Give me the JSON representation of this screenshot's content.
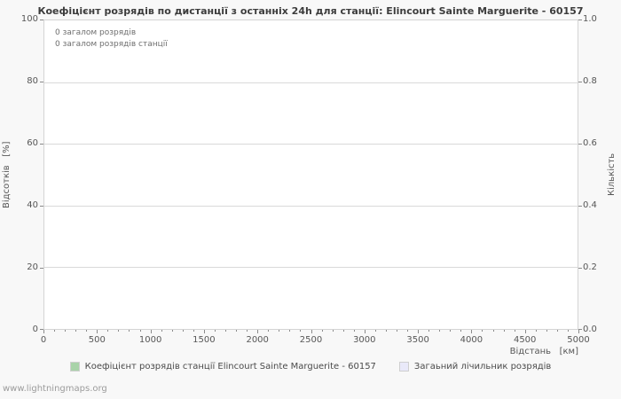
{
  "page": {
    "watermark": "www.lightningmaps.org"
  },
  "chart_data": {
    "type": "line",
    "title": "Коефіцієнт розрядів по дистанції з останніх 24h для станції: Elincourt Sainte Marguerite - 60157",
    "xlabel": "Відстань   [км]",
    "ylabel_left": "Відсотків   [%]",
    "ylabel_right": "Кількість",
    "xlim": [
      0,
      5000
    ],
    "ylim_left": [
      0,
      100
    ],
    "ylim_right": [
      0.0,
      1.0
    ],
    "x_ticks": [
      0,
      500,
      1000,
      1500,
      2000,
      2500,
      3000,
      3500,
      4000,
      4500,
      5000
    ],
    "y_left_ticks": [
      0,
      20,
      40,
      60,
      80,
      100
    ],
    "y_right_ticks": [
      "0.0",
      "0.2",
      "0.4",
      "0.6",
      "0.8",
      "1.0"
    ],
    "grid": "horizontal",
    "legend_position": "bottom",
    "annotations": [
      "0 загалом розрядів",
      "0 загалом розрядів станції"
    ],
    "series": [
      {
        "name": "Коефіцієнт розрядів станції Elincourt Sainte Marguerite - 60157",
        "color": "#a9d3a9",
        "values": []
      },
      {
        "name": "Загаьний лічильник розрядів",
        "color": "#e9e9f9",
        "values": []
      }
    ]
  }
}
